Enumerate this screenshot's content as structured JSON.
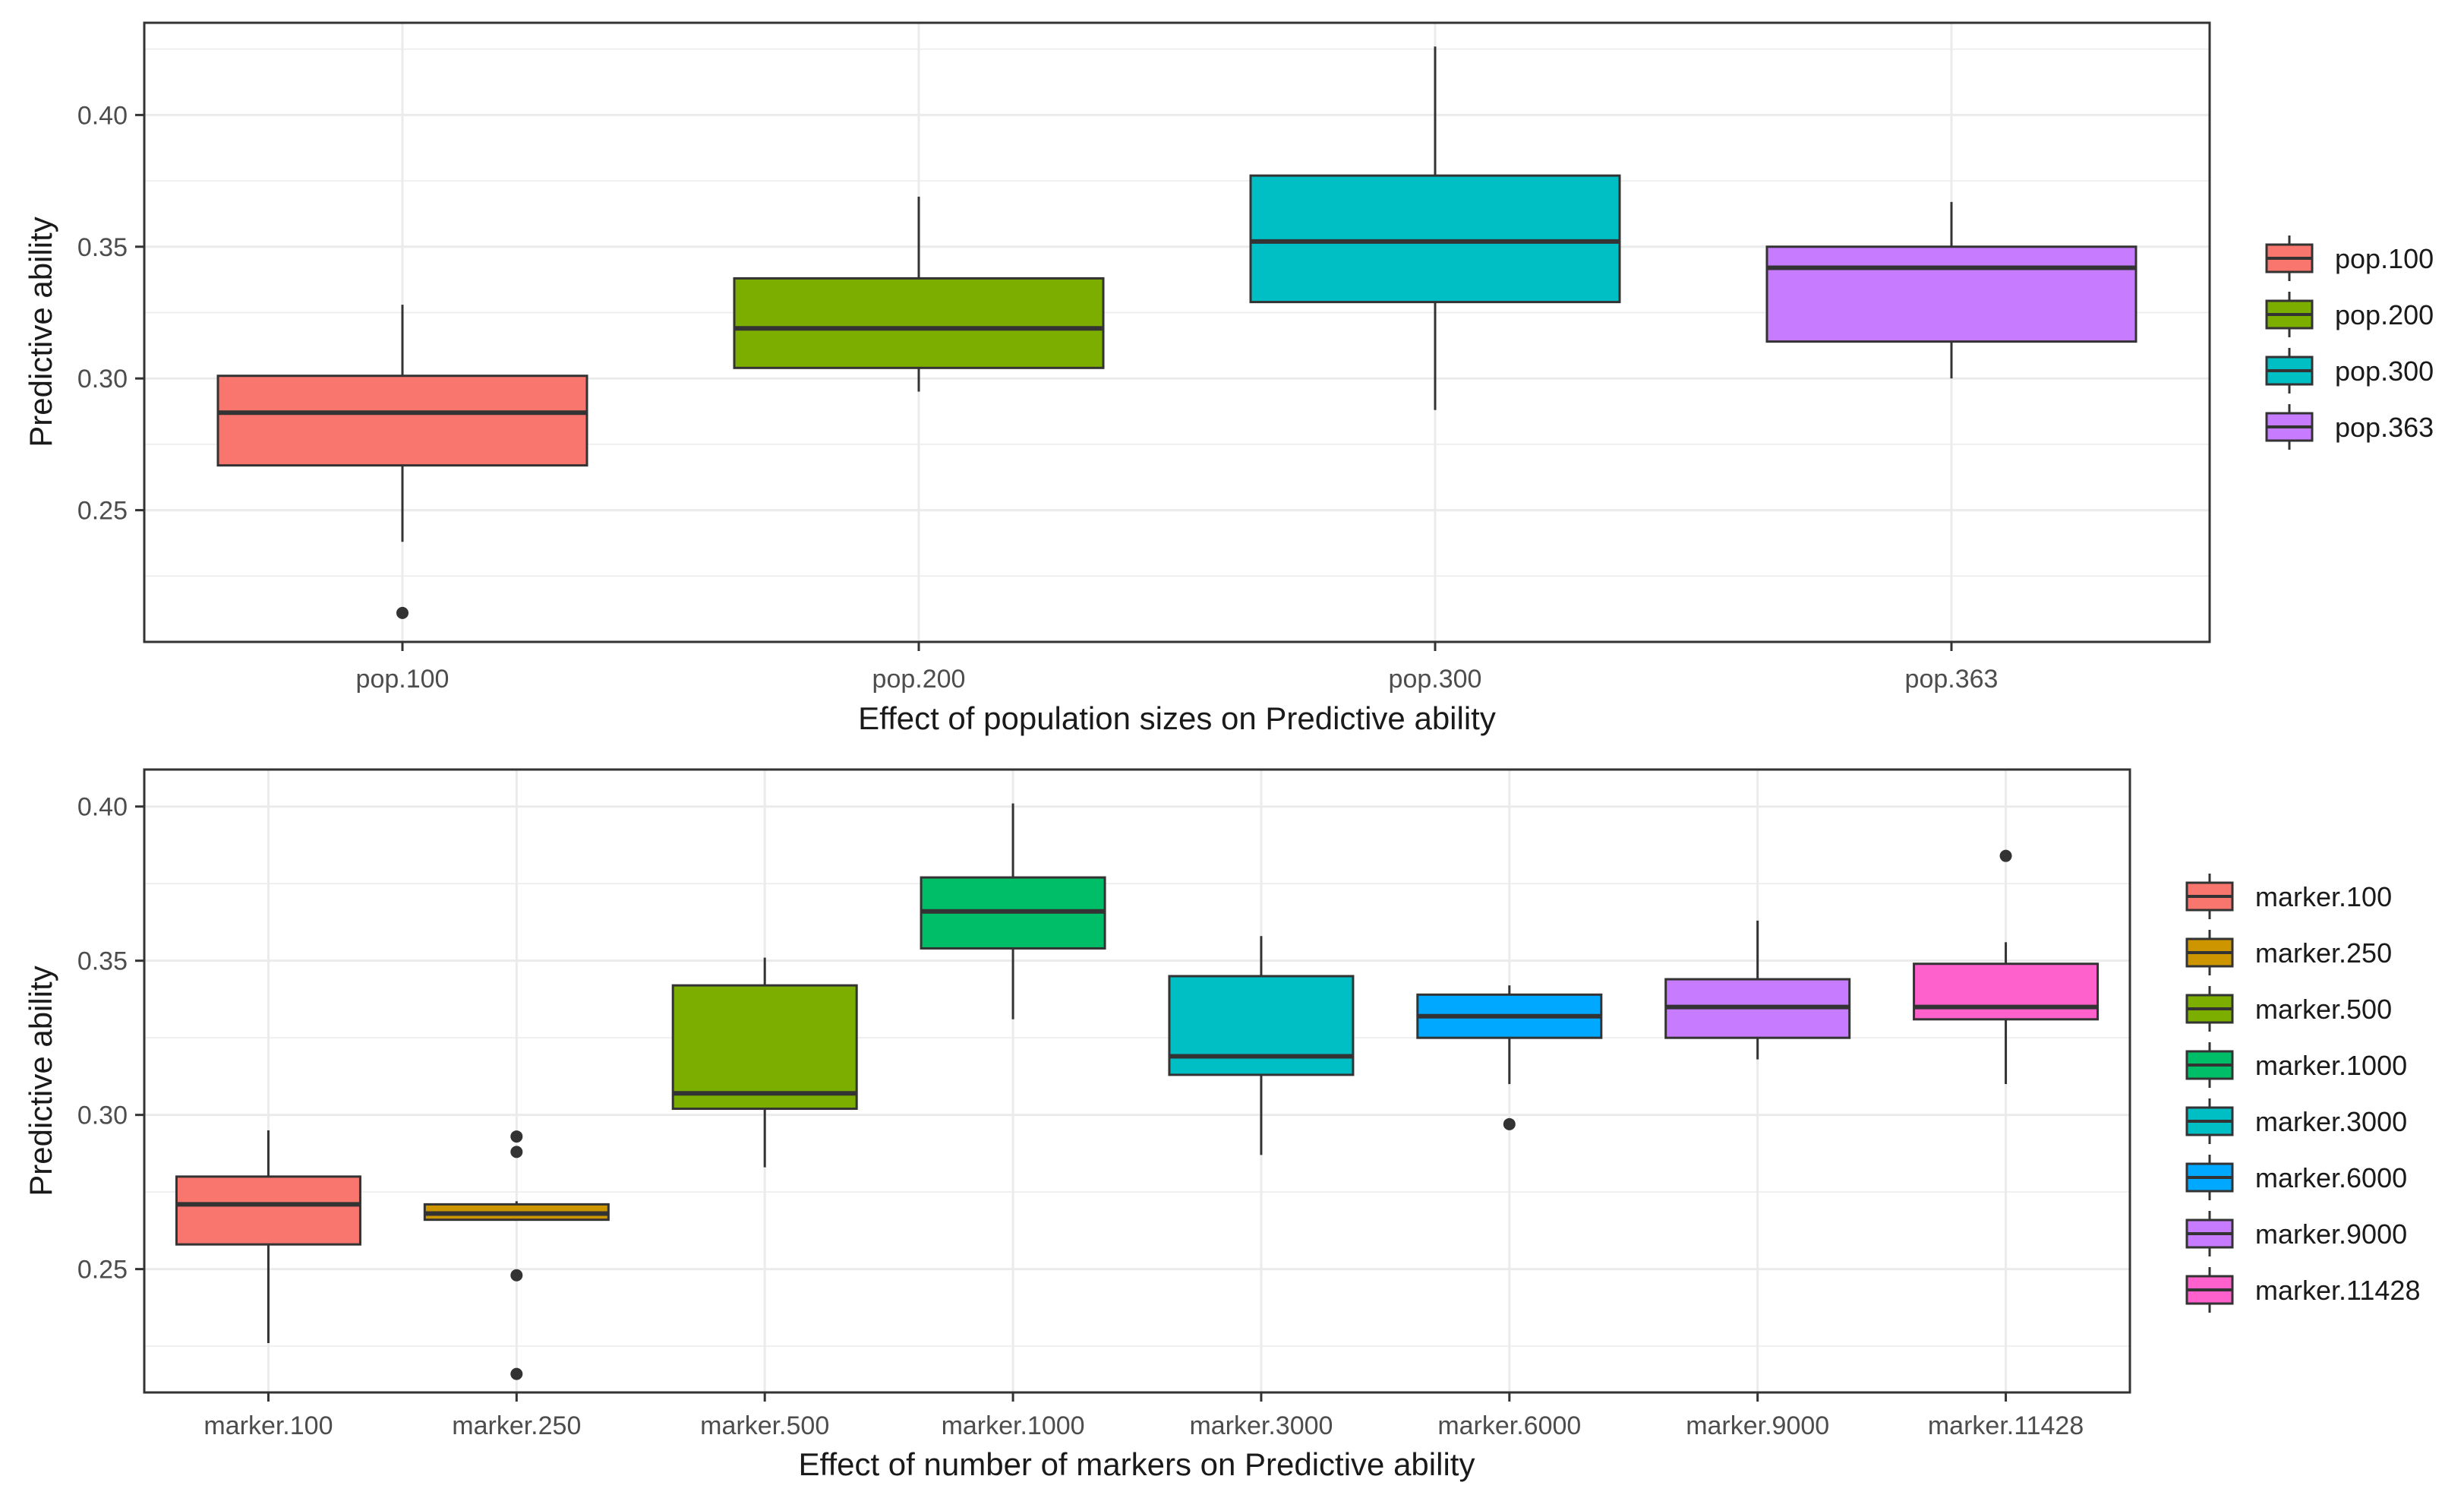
{
  "chart_data": [
    {
      "type": "boxplot",
      "title": "",
      "xlabel": "Effect of population sizes on Predictive ability",
      "ylabel": "Predictive ability",
      "ylim": [
        0.2,
        0.435
      ],
      "yticks": [
        0.25,
        0.3,
        0.35,
        0.4
      ],
      "ytick_labels": [
        "0.25",
        "0.30",
        "0.35",
        "0.40"
      ],
      "grid": true,
      "legend": "right",
      "categories": [
        "pop.100",
        "pop.200",
        "pop.300",
        "pop.363"
      ],
      "boxes": [
        {
          "name": "pop.100",
          "color": "#F8766D",
          "whisker_low": 0.238,
          "q1": 0.267,
          "median": 0.287,
          "q3": 0.301,
          "whisker_high": 0.328,
          "outliers": [
            0.211
          ]
        },
        {
          "name": "pop.200",
          "color": "#7CAE00",
          "whisker_low": 0.295,
          "q1": 0.304,
          "median": 0.319,
          "q3": 0.338,
          "whisker_high": 0.369,
          "outliers": []
        },
        {
          "name": "pop.300",
          "color": "#00BFC4",
          "whisker_low": 0.288,
          "q1": 0.329,
          "median": 0.352,
          "q3": 0.377,
          "whisker_high": 0.426,
          "outliers": []
        },
        {
          "name": "pop.363",
          "color": "#C77CFF",
          "whisker_low": 0.3,
          "q1": 0.314,
          "median": 0.342,
          "q3": 0.35,
          "whisker_high": 0.367,
          "outliers": []
        }
      ]
    },
    {
      "type": "boxplot",
      "title": "",
      "xlabel": "Effect of number of markers on Predictive ability",
      "ylabel": "Predictive ability",
      "ylim": [
        0.21,
        0.412
      ],
      "yticks": [
        0.25,
        0.3,
        0.35,
        0.4
      ],
      "ytick_labels": [
        "0.25",
        "0.30",
        "0.35",
        "0.40"
      ],
      "grid": true,
      "legend": "right",
      "categories": [
        "marker.100",
        "marker.250",
        "marker.500",
        "marker.1000",
        "marker.3000",
        "marker.6000",
        "marker.9000",
        "marker.11428"
      ],
      "boxes": [
        {
          "name": "marker.100",
          "color": "#F8766D",
          "whisker_low": 0.226,
          "q1": 0.258,
          "median": 0.271,
          "q3": 0.28,
          "whisker_high": 0.295,
          "outliers": []
        },
        {
          "name": "marker.250",
          "color": "#CD9600",
          "whisker_low": 0.266,
          "q1": 0.266,
          "median": 0.268,
          "q3": 0.271,
          "whisker_high": 0.272,
          "outliers": [
            0.293,
            0.288,
            0.248,
            0.216
          ]
        },
        {
          "name": "marker.500",
          "color": "#7CAE00",
          "whisker_low": 0.283,
          "q1": 0.302,
          "median": 0.307,
          "q3": 0.342,
          "whisker_high": 0.351,
          "outliers": []
        },
        {
          "name": "marker.1000",
          "color": "#00BE67",
          "whisker_low": 0.331,
          "q1": 0.354,
          "median": 0.366,
          "q3": 0.377,
          "whisker_high": 0.401,
          "outliers": []
        },
        {
          "name": "marker.3000",
          "color": "#00BFC4",
          "whisker_low": 0.287,
          "q1": 0.313,
          "median": 0.319,
          "q3": 0.345,
          "whisker_high": 0.358,
          "outliers": []
        },
        {
          "name": "marker.6000",
          "color": "#00A9FF",
          "whisker_low": 0.31,
          "q1": 0.325,
          "median": 0.332,
          "q3": 0.339,
          "whisker_high": 0.342,
          "outliers": [
            0.297
          ]
        },
        {
          "name": "marker.9000",
          "color": "#C77CFF",
          "whisker_low": 0.318,
          "q1": 0.325,
          "median": 0.335,
          "q3": 0.344,
          "whisker_high": 0.363,
          "outliers": []
        },
        {
          "name": "marker.11428",
          "color": "#FF61CC",
          "whisker_low": 0.31,
          "q1": 0.331,
          "median": 0.335,
          "q3": 0.349,
          "whisker_high": 0.356,
          "outliers": [
            0.384
          ]
        }
      ]
    }
  ]
}
